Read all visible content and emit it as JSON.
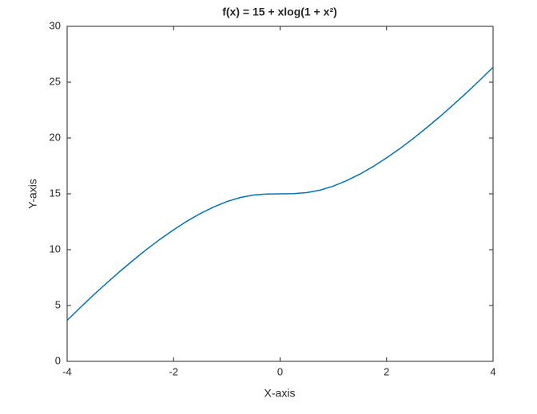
{
  "chart_data": {
    "type": "line",
    "title": "f(x)  =  15  +  xlog(1  +  x²)",
    "x_label": "X-axis",
    "y_label": "Y-axis",
    "x": [
      -4,
      -3.75,
      -3.5,
      -3.25,
      -3,
      -2.75,
      -2.5,
      -2.25,
      -2,
      -1.75,
      -1.5,
      -1.25,
      -1,
      -0.75,
      -0.5,
      -0.25,
      0,
      0.25,
      0.5,
      0.75,
      1,
      1.25,
      1.5,
      1.75,
      2,
      2.25,
      2.5,
      2.75,
      3,
      3.25,
      3.5,
      3.75,
      4
    ],
    "series": [
      {
        "color": "#0072bd",
        "values": [
          3.67,
          4.83,
          5.96,
          7.04,
          8.09,
          9.09,
          10.05,
          10.95,
          11.78,
          12.55,
          13.23,
          13.82,
          14.31,
          14.67,
          14.89,
          14.98,
          15,
          15.02,
          15.11,
          15.33,
          15.69,
          16.18,
          16.77,
          17.45,
          18.22,
          19.05,
          19.95,
          20.91,
          21.91,
          22.96,
          24.04,
          25.17,
          26.33
        ]
      }
    ],
    "xlim": [
      -4,
      4
    ],
    "xticks": [
      -4,
      -2,
      0,
      2,
      4
    ],
    "ylim": [
      0,
      30
    ],
    "yticks": [
      0,
      5,
      10,
      15,
      20,
      25,
      30
    ]
  }
}
